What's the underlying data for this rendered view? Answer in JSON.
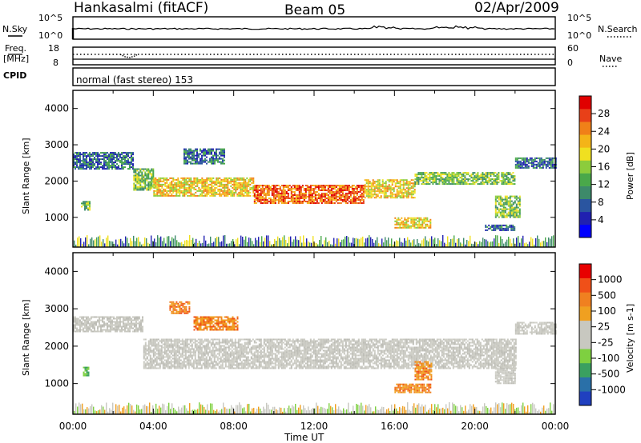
{
  "header": {
    "station": "Hankasalmi (fitACF)",
    "beam": "Beam 05",
    "date": "02/Apr/2009"
  },
  "strip_noise": {
    "left_label": "N.Sky",
    "right_label": "N.Search",
    "left_ticks": [
      "10^5",
      "10^0"
    ],
    "right_ticks": [
      "10^5",
      "10^0"
    ]
  },
  "strip_freq": {
    "left_label_line1": "Freq.",
    "left_label_line2": "[MHz]",
    "right_label": "Nave",
    "left_ticks": [
      "18",
      "8"
    ],
    "right_ticks": [
      "60",
      "0"
    ]
  },
  "cpid": {
    "label": "CPID",
    "mode_text": "normal (fast stereo) 153"
  },
  "chart_data": [
    {
      "type": "heatmap",
      "name": "power",
      "ylabel": "Slant Range [km]",
      "yticks": [
        "4000",
        "3000",
        "2000",
        "1000"
      ],
      "ylim": [
        180,
        4500
      ],
      "xlim_hours": [
        0,
        24
      ],
      "colorbar": {
        "label": "Power [dB]",
        "ticks": [
          "28",
          "24",
          "20",
          "16",
          "12",
          "8",
          "4"
        ],
        "colors": [
          "#0000ff",
          "#2020b0",
          "#2a55a0",
          "#3d8a6a",
          "#4aa84a",
          "#8ccc3c",
          "#f0e020",
          "#f4b418",
          "#f08018",
          "#e84018",
          "#e00000"
        ]
      },
      "echo_regions": [
        {
          "x0_h": 0.0,
          "x1_h": 3.0,
          "y0_km": 2350,
          "y1_km": 2800,
          "level": "low"
        },
        {
          "x0_h": 3.0,
          "x1_h": 4.0,
          "y0_km": 1750,
          "y1_km": 2350,
          "level": "medium"
        },
        {
          "x0_h": 4.0,
          "x1_h": 9.0,
          "y0_km": 1600,
          "y1_km": 2100,
          "level": "high"
        },
        {
          "x0_h": 9.0,
          "x1_h": 14.5,
          "y0_km": 1400,
          "y1_km": 1900,
          "level": "peak"
        },
        {
          "x0_h": 14.5,
          "x1_h": 17.0,
          "y0_km": 1550,
          "y1_km": 2050,
          "level": "high"
        },
        {
          "x0_h": 17.0,
          "x1_h": 22.0,
          "y0_km": 1900,
          "y1_km": 2250,
          "level": "medium"
        },
        {
          "x0_h": 22.0,
          "x1_h": 24.0,
          "y0_km": 2350,
          "y1_km": 2650,
          "level": "low"
        },
        {
          "x0_h": 5.5,
          "x1_h": 7.5,
          "y0_km": 2500,
          "y1_km": 2900,
          "level": "low"
        },
        {
          "x0_h": 16.0,
          "x1_h": 17.8,
          "y0_km": 700,
          "y1_km": 1000,
          "level": "high"
        },
        {
          "x0_h": 21.0,
          "x1_h": 22.2,
          "y0_km": 1000,
          "y1_km": 1600,
          "level": "medium"
        },
        {
          "x0_h": 0.4,
          "x1_h": 0.8,
          "y0_km": 1200,
          "y1_km": 1450,
          "level": "medium"
        },
        {
          "x0_h": 20.5,
          "x1_h": 22.0,
          "y0_km": 650,
          "y1_km": 800,
          "level": "low"
        }
      ]
    },
    {
      "type": "heatmap",
      "name": "velocity",
      "ylabel": "Slant Range [km]",
      "yticks": [
        "4000",
        "3000",
        "2000",
        "1000"
      ],
      "ylim": [
        180,
        4500
      ],
      "xlim_hours": [
        0,
        24
      ],
      "colorbar": {
        "label": "Velocity [m s-1]",
        "ticks": [
          "1000",
          "500",
          "100",
          "25",
          "-25",
          "-100",
          "-500",
          "-1000"
        ],
        "colors": [
          "#2040c0",
          "#2a70a8",
          "#3aa060",
          "#7ed040",
          "#c8c8c0",
          "#c8c8c0",
          "#f0a020",
          "#f08020",
          "#f05018",
          "#e80000"
        ]
      },
      "echo_regions": [
        {
          "x0_h": 0.0,
          "x1_h": 3.5,
          "y0_km": 2400,
          "y1_km": 2800,
          "level": "ground"
        },
        {
          "x0_h": 3.5,
          "x1_h": 22.0,
          "y0_km": 1400,
          "y1_km": 2200,
          "level": "ground"
        },
        {
          "x0_h": 22.0,
          "x1_h": 24.0,
          "y0_km": 2350,
          "y1_km": 2650,
          "level": "ground"
        },
        {
          "x0_h": 4.8,
          "x1_h": 5.8,
          "y0_km": 2900,
          "y1_km": 3200,
          "level": "away"
        },
        {
          "x0_h": 6.0,
          "x1_h": 8.2,
          "y0_km": 2450,
          "y1_km": 2800,
          "level": "away"
        },
        {
          "x0_h": 16.0,
          "x1_h": 17.8,
          "y0_km": 750,
          "y1_km": 1000,
          "level": "away"
        },
        {
          "x0_h": 17.0,
          "x1_h": 17.8,
          "y0_km": 1100,
          "y1_km": 1600,
          "level": "away"
        },
        {
          "x0_h": 0.5,
          "x1_h": 0.8,
          "y0_km": 1200,
          "y1_km": 1450,
          "level": "toward"
        },
        {
          "x0_h": 21.0,
          "x1_h": 22.0,
          "y0_km": 1000,
          "y1_km": 1500,
          "level": "ground"
        }
      ]
    }
  ],
  "xaxis": {
    "ticks": [
      "00:00",
      "04:00",
      "08:00",
      "12:00",
      "16:00",
      "20:00",
      "00:00"
    ],
    "label": "Time UT"
  }
}
